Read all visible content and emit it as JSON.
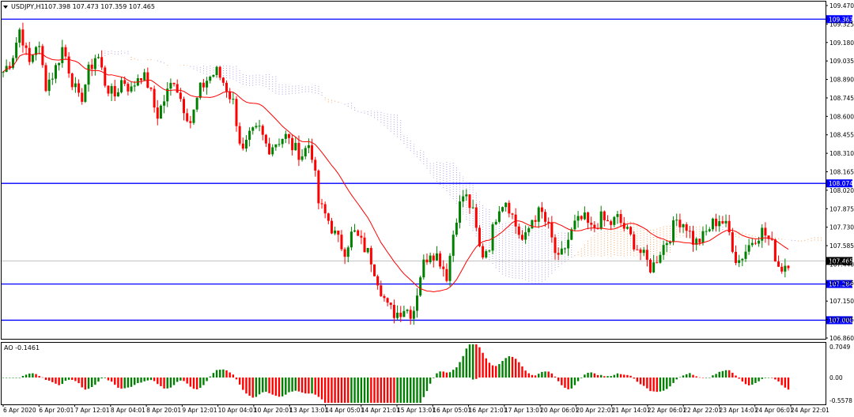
{
  "header": {
    "title": "USDJPY,H1",
    "ohlc": "107.398 107.473 107.359 107.465"
  },
  "indicator": {
    "label": "AO -0.1461",
    "scale_top": "0.7049",
    "scale_zero": "0.00",
    "scale_bottom": "-0.5578"
  },
  "colors": {
    "bull": "#008000",
    "bear": "#ff0000",
    "ma": "#ff0000",
    "hline": "#0000ff",
    "price_line": "#c0c0c0",
    "cloud_a": "#f4a460",
    "cloud_b": "#b0a0e0"
  },
  "price_levels": [
    {
      "value": 109.363,
      "label": "109.363"
    },
    {
      "value": 108.074,
      "label": "108.074"
    },
    {
      "value": 107.284,
      "label": "107.284"
    },
    {
      "value": 107.0,
      "label": "107.000"
    }
  ],
  "current_price": {
    "value": 107.465,
    "label": "107.465"
  },
  "chart_data": {
    "type": "candlestick",
    "symbol": "USDJPY",
    "timeframe": "H1",
    "ylim": [
      106.86,
      109.47
    ],
    "y_ticks": [
      "109.470",
      "109.325",
      "109.180",
      "109.035",
      "108.890",
      "108.745",
      "108.600",
      "108.455",
      "108.310",
      "108.165",
      "108.020",
      "107.875",
      "107.730",
      "107.585",
      "107.440",
      "107.295",
      "107.150",
      "107.005",
      "106.860"
    ],
    "x_ticks": [
      "6 Apr 2020",
      "6 Apr 20:01",
      "7 Apr 12:01",
      "8 Apr 04:01",
      "8 Apr 20:01",
      "9 Apr 12:01",
      "10 Apr 04:01",
      "10 Apr 20:01",
      "13 Apr 13:01",
      "14 Apr 05:01",
      "14 Apr 21:01",
      "15 Apr 13:01",
      "16 Apr 05:01",
      "16 Apr 21:01",
      "17 Apr 13:01",
      "20 Apr 06:01",
      "20 Apr 22:01",
      "21 Apr 14:01",
      "22 Apr 06:01",
      "22 Apr 22:01",
      "23 Apr 14:01",
      "24 Apr 06:01",
      "24 Apr 22:01"
    ],
    "close_path": [
      108.95,
      109.05,
      109.3,
      109.0,
      109.2,
      108.85,
      108.95,
      109.15,
      108.9,
      108.7,
      108.95,
      109.1,
      108.85,
      108.75,
      108.9,
      108.8,
      108.95,
      108.85,
      108.6,
      108.75,
      108.9,
      108.7,
      108.55,
      108.8,
      108.9,
      108.95,
      108.85,
      108.7,
      108.3,
      108.45,
      108.5,
      108.35,
      108.4,
      108.45,
      108.35,
      108.3,
      108.4,
      107.9,
      107.8,
      107.65,
      107.55,
      107.7,
      107.6,
      107.5,
      107.3,
      107.1,
      107.05,
      107.1,
      107.05,
      107.4,
      107.55,
      107.5,
      107.35,
      107.8,
      108.0,
      107.85,
      107.5,
      107.6,
      107.9,
      107.95,
      107.75,
      107.6,
      107.8,
      107.85,
      107.7,
      107.45,
      107.6,
      107.75,
      107.8,
      107.7,
      107.8,
      107.75,
      107.8,
      107.7,
      107.6,
      107.5,
      107.4,
      107.55,
      107.65,
      107.8,
      107.75,
      107.6,
      107.65,
      107.75,
      107.8,
      107.7,
      107.45,
      107.55,
      107.65,
      107.7,
      107.6,
      107.4,
      107.465
    ]
  }
}
